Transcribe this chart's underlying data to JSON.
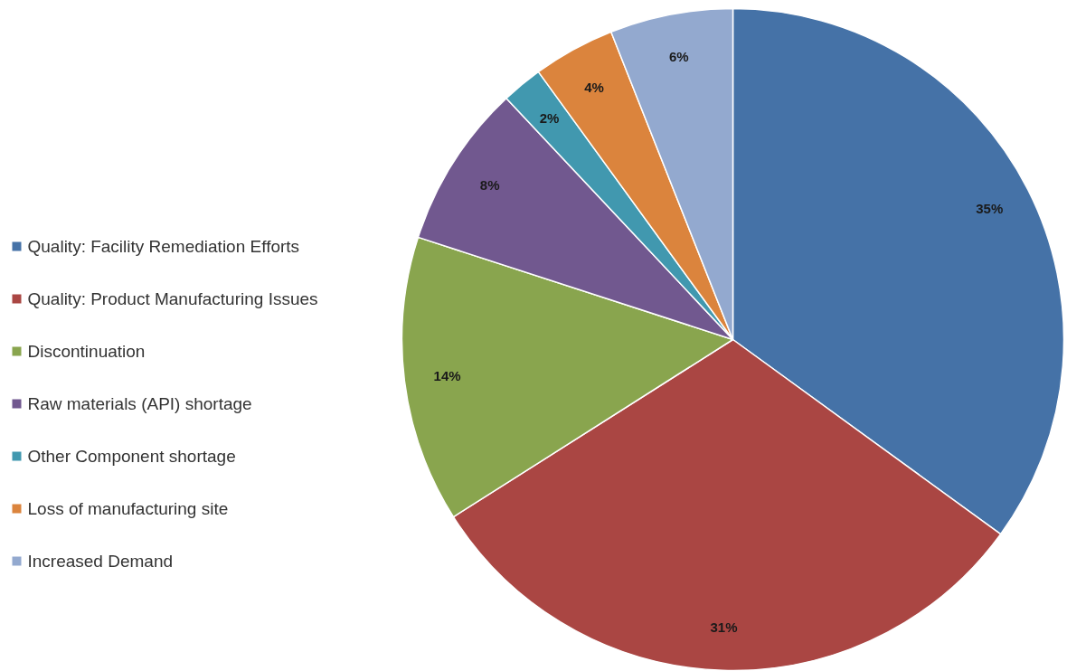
{
  "chart_data": {
    "type": "pie",
    "categories": [
      "Quality: Facility Remediation Efforts",
      "Quality: Product Manufacturing Issues",
      "Discontinuation",
      "Raw materials (API) shortage",
      "Other Component shortage",
      "Loss of manufacturing site",
      "Increased Demand"
    ],
    "values": [
      35,
      31,
      14,
      8,
      2,
      4,
      6
    ],
    "colors": [
      "#4572a7",
      "#aa4643",
      "#89a54e",
      "#71588f",
      "#4198af",
      "#db843d",
      "#93a9cf"
    ],
    "value_labels": [
      "35%",
      "31%",
      "14%",
      "8%",
      "2%",
      "4%",
      "6%"
    ],
    "legend": "left"
  }
}
